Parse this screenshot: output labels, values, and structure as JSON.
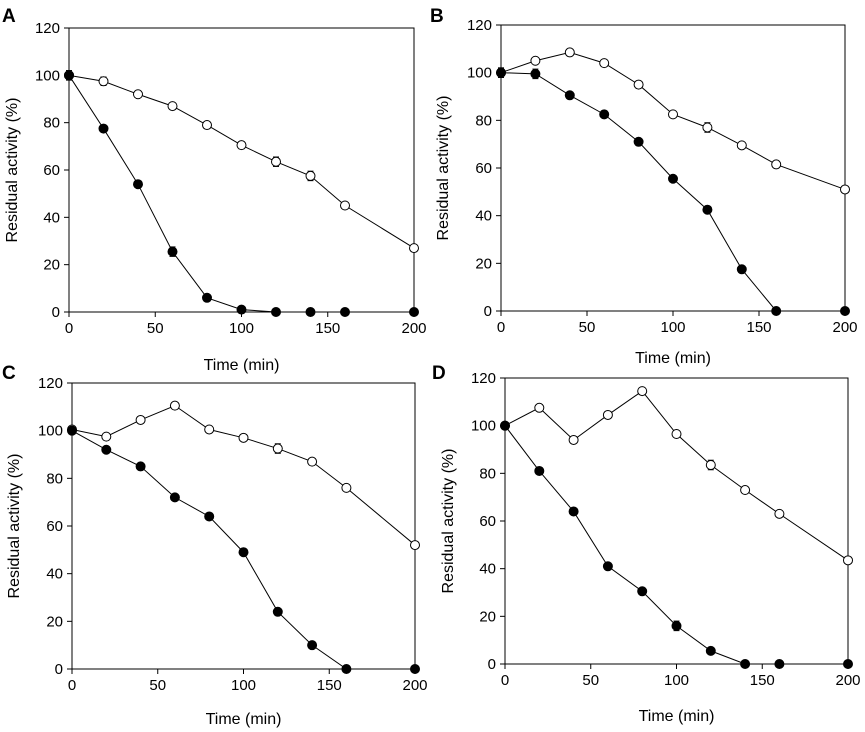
{
  "chart_data": [
    {
      "panel": "A",
      "type": "line",
      "xlabel": "Time (min)",
      "ylabel": "Residual activity (%)",
      "xlim": [
        0,
        200
      ],
      "ylim": [
        0,
        120
      ],
      "xticks": [
        0,
        50,
        100,
        150,
        200
      ],
      "yticks": [
        0,
        20,
        40,
        60,
        80,
        100,
        120
      ],
      "series": [
        {
          "name": "open-circles",
          "marker": "open",
          "x": [
            0,
            20,
            40,
            60,
            80,
            100,
            120,
            140,
            160,
            200
          ],
          "y": [
            100,
            97.5,
            92,
            87,
            79,
            70.5,
            63.5,
            57.5,
            45,
            27
          ],
          "err": [
            2,
            1.8,
            1,
            1,
            1,
            1.5,
            2,
            2,
            1,
            1
          ]
        },
        {
          "name": "filled-circles",
          "marker": "filled",
          "x": [
            0,
            20,
            40,
            60,
            80,
            100,
            120,
            140,
            160,
            200
          ],
          "y": [
            100,
            77.5,
            54,
            25.5,
            6,
            1,
            0,
            0,
            0,
            0
          ],
          "err": [
            2,
            1,
            1,
            2,
            1,
            0.5,
            0,
            0,
            0,
            0
          ]
        }
      ]
    },
    {
      "panel": "B",
      "type": "line",
      "xlabel": "Time (min)",
      "ylabel": "Residual activity (%)",
      "xlim": [
        0,
        200
      ],
      "ylim": [
        0,
        120
      ],
      "xticks": [
        0,
        50,
        100,
        150,
        200
      ],
      "yticks": [
        0,
        20,
        40,
        60,
        80,
        100,
        120
      ],
      "series": [
        {
          "name": "open-circles",
          "marker": "open",
          "x": [
            0,
            20,
            40,
            60,
            80,
            100,
            120,
            140,
            160,
            200
          ],
          "y": [
            100,
            105,
            108.5,
            104,
            95,
            82.5,
            77,
            69.5,
            61.5,
            51
          ],
          "err": [
            2,
            1,
            1,
            1,
            1,
            1,
            2,
            1,
            1,
            1
          ]
        },
        {
          "name": "filled-circles",
          "marker": "filled",
          "x": [
            0,
            20,
            40,
            60,
            80,
            100,
            120,
            140,
            160,
            200
          ],
          "y": [
            100,
            99.5,
            90.5,
            82.5,
            71,
            55.5,
            42.5,
            17.5,
            0,
            0
          ],
          "err": [
            2,
            2,
            1,
            1.5,
            1,
            1,
            1,
            1,
            0,
            0
          ]
        }
      ]
    },
    {
      "panel": "C",
      "type": "line",
      "xlabel": "Time (min)",
      "ylabel": "Residual activity (%)",
      "xlim": [
        0,
        200
      ],
      "ylim": [
        0,
        120
      ],
      "xticks": [
        0,
        50,
        100,
        150,
        200
      ],
      "yticks": [
        0,
        20,
        40,
        60,
        80,
        100,
        120
      ],
      "series": [
        {
          "name": "open-circles",
          "marker": "open",
          "x": [
            0,
            20,
            40,
            60,
            80,
            100,
            120,
            140,
            160,
            200
          ],
          "y": [
            100.5,
            97.5,
            104.5,
            110.5,
            100.5,
            97,
            92.5,
            87,
            76,
            52
          ],
          "err": [
            1,
            1,
            1,
            1,
            1,
            1,
            2,
            1,
            1,
            1
          ]
        },
        {
          "name": "filled-circles",
          "marker": "filled",
          "x": [
            0,
            20,
            40,
            60,
            80,
            100,
            120,
            140,
            160,
            200
          ],
          "y": [
            100,
            92,
            85,
            72,
            64,
            49,
            24,
            10,
            0,
            0
          ],
          "err": [
            1,
            1,
            1,
            1,
            1,
            1,
            1,
            1,
            0,
            0
          ]
        }
      ]
    },
    {
      "panel": "D",
      "type": "line",
      "xlabel": "Time (min)",
      "ylabel": "Residual activity (%)",
      "xlim": [
        0,
        200
      ],
      "ylim": [
        0,
        120
      ],
      "xticks": [
        0,
        50,
        100,
        150,
        200
      ],
      "yticks": [
        0,
        20,
        40,
        60,
        80,
        100,
        120
      ],
      "series": [
        {
          "name": "open-circles",
          "marker": "open",
          "x": [
            0,
            20,
            40,
            60,
            80,
            100,
            120,
            140,
            160,
            200
          ],
          "y": [
            100,
            107.5,
            94,
            104.5,
            114.5,
            96.5,
            83.5,
            73,
            63,
            43.5
          ],
          "err": [
            1,
            1,
            1,
            1,
            1,
            1,
            2,
            1,
            1,
            1
          ]
        },
        {
          "name": "filled-circles",
          "marker": "filled",
          "x": [
            0,
            20,
            40,
            60,
            80,
            100,
            120,
            140,
            160,
            200
          ],
          "y": [
            100,
            81,
            64,
            41,
            30.5,
            16,
            5.5,
            0,
            0,
            0
          ],
          "err": [
            1,
            1,
            1,
            1,
            1,
            2,
            1,
            0,
            0,
            0
          ]
        }
      ]
    }
  ]
}
